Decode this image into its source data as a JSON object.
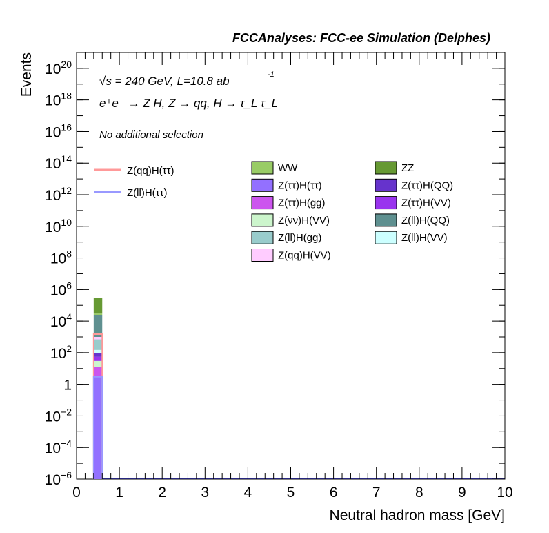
{
  "header": "FCCAnalyses: FCC-ee Simulation (Delphes)",
  "annotations": {
    "energy_line": "√s = 240 GeV, L=10.8 ab",
    "lumi_exponent": "-1",
    "process_line": "e⁺e⁻ → Z H, Z → qq, H → τ_L τ_L",
    "selection": "No additional selection"
  },
  "chart_data": {
    "type": "bar",
    "title": "",
    "xlabel": "Neutral hadron mass [GeV]",
    "ylabel": "Events",
    "xlim": [
      0,
      10
    ],
    "ylim": [
      1e-06,
      1e+21
    ],
    "yscale": "log",
    "bin_width": 0.2,
    "grid": false,
    "x_ticks": [
      "0",
      "1",
      "2",
      "3",
      "4",
      "5",
      "6",
      "7",
      "8",
      "9",
      "10"
    ],
    "y_ticks": [
      {
        "base": "10",
        "exp": "−6",
        "value": 1e-06
      },
      {
        "base": "10",
        "exp": "−4",
        "value": 0.0001
      },
      {
        "base": "10",
        "exp": "−2",
        "value": 0.01
      },
      {
        "base": "1",
        "exp": "",
        "value": 1
      },
      {
        "base": "10",
        "exp": "2",
        "value": 100.0
      },
      {
        "base": "10",
        "exp": "4",
        "value": 10000.0
      },
      {
        "base": "10",
        "exp": "6",
        "value": 1000000.0
      },
      {
        "base": "10",
        "exp": "8",
        "value": 100000000.0
      },
      {
        "base": "10",
        "exp": "10",
        "value": 10000000000.0
      },
      {
        "base": "10",
        "exp": "12",
        "value": 1000000000000.0
      },
      {
        "base": "10",
        "exp": "14",
        "value": 100000000000000.0
      },
      {
        "base": "10",
        "exp": "16",
        "value": 1e+16
      },
      {
        "base": "10",
        "exp": "18",
        "value": 1e+18
      },
      {
        "base": "10",
        "exp": "20",
        "value": 1e+20
      }
    ],
    "stack_bin": {
      "x_low": 0.4,
      "x_high": 0.6
    },
    "stacked_backgrounds": [
      {
        "name": "Z(ττ)H(ττ)",
        "color": "#9370ff",
        "cum_top": 3
      },
      {
        "name": "Z(ττ)H(gg)",
        "color": "#cc55ee",
        "cum_top": 12
      },
      {
        "name": "Z(νν)H(VV)",
        "color": "#ccf5cc",
        "cum_top": 30
      },
      {
        "name": "Z(ττ)H(VV)",
        "color": "#9933ee",
        "cum_top": 55
      },
      {
        "name": "Z(ττ)H(QQ)",
        "color": "#6633cc",
        "cum_top": 90
      },
      {
        "name": "Z(ll)H(VV)",
        "color": "#ccffff",
        "cum_top": 150
      },
      {
        "name": "Z(ll)H(gg)",
        "color": "#99cccc",
        "cum_top": 700
      },
      {
        "name": "Z(qq)H(VV)",
        "color": "#ffccff",
        "cum_top": 1000
      },
      {
        "name": "Z(ll)H(QQ)",
        "color": "#5f9090",
        "cum_top": 25000
      },
      {
        "name": "WW",
        "color": "#99cc66",
        "cum_top": 30000
      },
      {
        "name": "ZZ",
        "color": "#669933",
        "cum_top": 300000
      }
    ],
    "signals": [
      {
        "name": "Z(qq)H(ττ)",
        "color": "#ff9999",
        "x_low": 0.4,
        "x_high": 0.6,
        "value": 1500
      },
      {
        "name": "Z(ll)H(ττ)",
        "color": "#9999ff",
        "x_low": 0.4,
        "x_high": 0.6,
        "value": 3
      }
    ],
    "legend_left": [
      {
        "name": "Z(qq)H(ττ)",
        "color": "#ff9999",
        "style": "line"
      },
      {
        "name": "Z(ll)H(ττ)",
        "color": "#9999ff",
        "style": "line"
      }
    ],
    "legend_mid": [
      {
        "name": "WW",
        "color": "#99cc66"
      },
      {
        "name": "Z(ττ)H(ττ)",
        "color": "#9370ff"
      },
      {
        "name": "Z(ττ)H(gg)",
        "color": "#cc55ee"
      },
      {
        "name": "Z(νν)H(VV)",
        "color": "#ccf5cc"
      },
      {
        "name": "Z(ll)H(gg)",
        "color": "#99cccc"
      },
      {
        "name": "Z(qq)H(VV)",
        "color": "#ffccff"
      }
    ],
    "legend_right": [
      {
        "name": "ZZ",
        "color": "#669933"
      },
      {
        "name": "Z(ττ)H(QQ)",
        "color": "#6633cc"
      },
      {
        "name": "Z(ττ)H(VV)",
        "color": "#9933ee"
      },
      {
        "name": "Z(ll)H(QQ)",
        "color": "#5f9090"
      },
      {
        "name": "Z(ll)H(VV)",
        "color": "#ccffff"
      }
    ]
  }
}
